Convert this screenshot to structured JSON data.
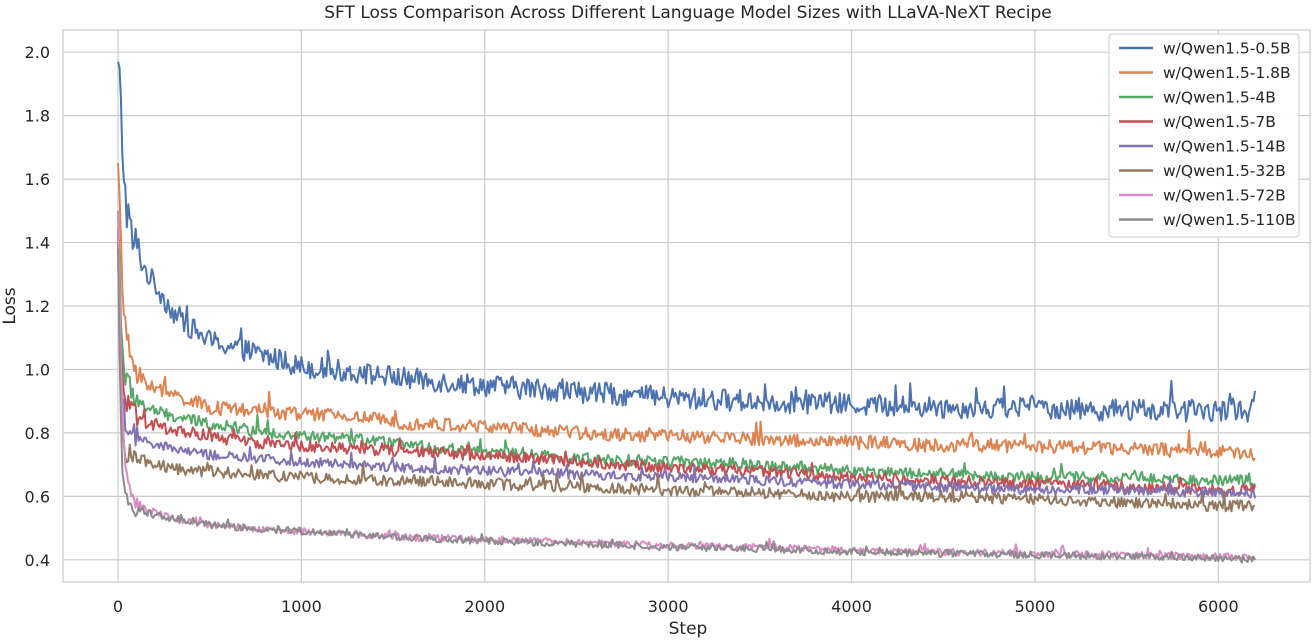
{
  "chart_data": {
    "type": "line",
    "title": "SFT Loss Comparison Across Different Language Model Sizes with LLaVA-NeXT Recipe",
    "xlabel": "Step",
    "ylabel": "Loss",
    "xlim": [
      -300,
      6500
    ],
    "ylim": [
      0.33,
      2.07
    ],
    "xticks": [
      0,
      1000,
      2000,
      3000,
      4000,
      5000,
      6000
    ],
    "xtick_labels": [
      "0",
      "1000",
      "2000",
      "3000",
      "4000",
      "5000",
      "6000"
    ],
    "yticks": [
      0.4,
      0.6,
      0.8,
      1.0,
      1.2,
      1.4,
      1.6,
      1.8,
      2.0
    ],
    "ytick_labels": [
      "0.4",
      "0.6",
      "0.8",
      "1.0",
      "1.2",
      "1.4",
      "1.6",
      "1.8",
      "2.0"
    ],
    "grid": true,
    "legend_position": "top-right",
    "series": [
      {
        "name": "w/Qwen1.5-0.5B",
        "color": "#4c72b0",
        "amplitude": 0.035,
        "x": [
          0,
          10,
          20,
          40,
          70,
          100,
          150,
          200,
          300,
          400,
          500,
          700,
          1000,
          1300,
          1600,
          2000,
          2500,
          3000,
          3500,
          4000,
          4500,
          5000,
          5500,
          6000,
          6200
        ],
        "y": [
          1.97,
          1.9,
          1.75,
          1.55,
          1.42,
          1.38,
          1.31,
          1.27,
          1.18,
          1.13,
          1.09,
          1.06,
          1.01,
          0.99,
          0.97,
          0.95,
          0.93,
          0.91,
          0.9,
          0.89,
          0.88,
          0.88,
          0.87,
          0.87,
          0.87
        ]
      },
      {
        "name": "w/Qwen1.5-1.8B",
        "color": "#dd8452",
        "amplitude": 0.022,
        "x": [
          0,
          10,
          20,
          40,
          70,
          100,
          150,
          200,
          300,
          400,
          500,
          700,
          1000,
          1300,
          1600,
          2000,
          2500,
          3000,
          3500,
          4000,
          4500,
          5000,
          5500,
          6000,
          6200
        ],
        "y": [
          1.65,
          1.5,
          1.3,
          1.12,
          1.04,
          1.0,
          0.96,
          0.94,
          0.92,
          0.9,
          0.88,
          0.87,
          0.86,
          0.85,
          0.83,
          0.82,
          0.8,
          0.79,
          0.78,
          0.77,
          0.76,
          0.76,
          0.75,
          0.74,
          0.73
        ]
      },
      {
        "name": "w/Qwen1.5-4B",
        "color": "#55a868",
        "amplitude": 0.018,
        "x": [
          0,
          10,
          20,
          40,
          70,
          100,
          150,
          200,
          300,
          400,
          500,
          700,
          1000,
          1300,
          1600,
          2000,
          2500,
          3000,
          3500,
          4000,
          4500,
          5000,
          5500,
          6000,
          6200
        ],
        "y": [
          1.5,
          1.3,
          1.1,
          0.97,
          0.93,
          0.91,
          0.88,
          0.87,
          0.85,
          0.84,
          0.83,
          0.81,
          0.79,
          0.78,
          0.76,
          0.74,
          0.72,
          0.71,
          0.7,
          0.68,
          0.67,
          0.66,
          0.66,
          0.65,
          0.65
        ]
      },
      {
        "name": "w/Qwen1.5-7B",
        "color": "#c44e52",
        "amplitude": 0.018,
        "x": [
          0,
          10,
          20,
          40,
          70,
          100,
          150,
          200,
          300,
          400,
          500,
          700,
          1000,
          1300,
          1600,
          2000,
          2500,
          3000,
          3500,
          4000,
          4500,
          5000,
          5500,
          6000,
          6200
        ],
        "y": [
          1.45,
          1.2,
          1.0,
          0.9,
          0.86,
          0.85,
          0.83,
          0.82,
          0.81,
          0.8,
          0.79,
          0.77,
          0.76,
          0.75,
          0.74,
          0.73,
          0.71,
          0.69,
          0.68,
          0.66,
          0.65,
          0.64,
          0.63,
          0.62,
          0.62
        ]
      },
      {
        "name": "w/Qwen1.5-14B",
        "color": "#8172b3",
        "amplitude": 0.016,
        "x": [
          0,
          10,
          20,
          40,
          70,
          100,
          150,
          200,
          300,
          400,
          500,
          700,
          1000,
          1300,
          1600,
          2000,
          2500,
          3000,
          3500,
          4000,
          4500,
          5000,
          5500,
          6000,
          6200
        ],
        "y": [
          1.45,
          1.1,
          0.92,
          0.84,
          0.8,
          0.79,
          0.77,
          0.76,
          0.75,
          0.74,
          0.73,
          0.72,
          0.71,
          0.7,
          0.69,
          0.68,
          0.67,
          0.66,
          0.65,
          0.64,
          0.63,
          0.62,
          0.62,
          0.61,
          0.61
        ]
      },
      {
        "name": "w/Qwen1.5-32B",
        "color": "#937860",
        "amplitude": 0.018,
        "x": [
          0,
          10,
          20,
          40,
          70,
          100,
          150,
          200,
          300,
          400,
          500,
          700,
          1000,
          1300,
          1600,
          2000,
          2500,
          3000,
          3500,
          4000,
          4500,
          5000,
          5500,
          6000,
          6200
        ],
        "y": [
          1.4,
          1.0,
          0.82,
          0.75,
          0.73,
          0.72,
          0.71,
          0.7,
          0.69,
          0.68,
          0.68,
          0.67,
          0.66,
          0.65,
          0.65,
          0.64,
          0.63,
          0.62,
          0.61,
          0.6,
          0.6,
          0.59,
          0.58,
          0.57,
          0.57
        ]
      },
      {
        "name": "w/Qwen1.5-72B",
        "color": "#da8bc3",
        "amplitude": 0.011,
        "x": [
          0,
          10,
          20,
          40,
          70,
          100,
          150,
          200,
          300,
          400,
          500,
          700,
          1000,
          1300,
          1600,
          2000,
          2500,
          3000,
          3500,
          4000,
          4500,
          5000,
          5500,
          6000,
          6200
        ],
        "y": [
          1.5,
          1.2,
          0.9,
          0.7,
          0.62,
          0.58,
          0.56,
          0.55,
          0.53,
          0.52,
          0.51,
          0.5,
          0.49,
          0.48,
          0.47,
          0.465,
          0.455,
          0.445,
          0.44,
          0.43,
          0.425,
          0.42,
          0.415,
          0.41,
          0.41
        ]
      },
      {
        "name": "w/Qwen1.5-110B",
        "color": "#8c8c8c",
        "amplitude": 0.011,
        "x": [
          0,
          10,
          20,
          40,
          70,
          100,
          150,
          200,
          300,
          400,
          500,
          700,
          1000,
          1300,
          1600,
          2000,
          2500,
          3000,
          3500,
          4000,
          4500,
          5000,
          5500,
          6000,
          6200
        ],
        "y": [
          1.38,
          1.0,
          0.72,
          0.6,
          0.57,
          0.56,
          0.55,
          0.54,
          0.53,
          0.52,
          0.51,
          0.5,
          0.49,
          0.48,
          0.47,
          0.46,
          0.45,
          0.44,
          0.435,
          0.425,
          0.42,
          0.415,
          0.41,
          0.405,
          0.4
        ]
      }
    ]
  }
}
